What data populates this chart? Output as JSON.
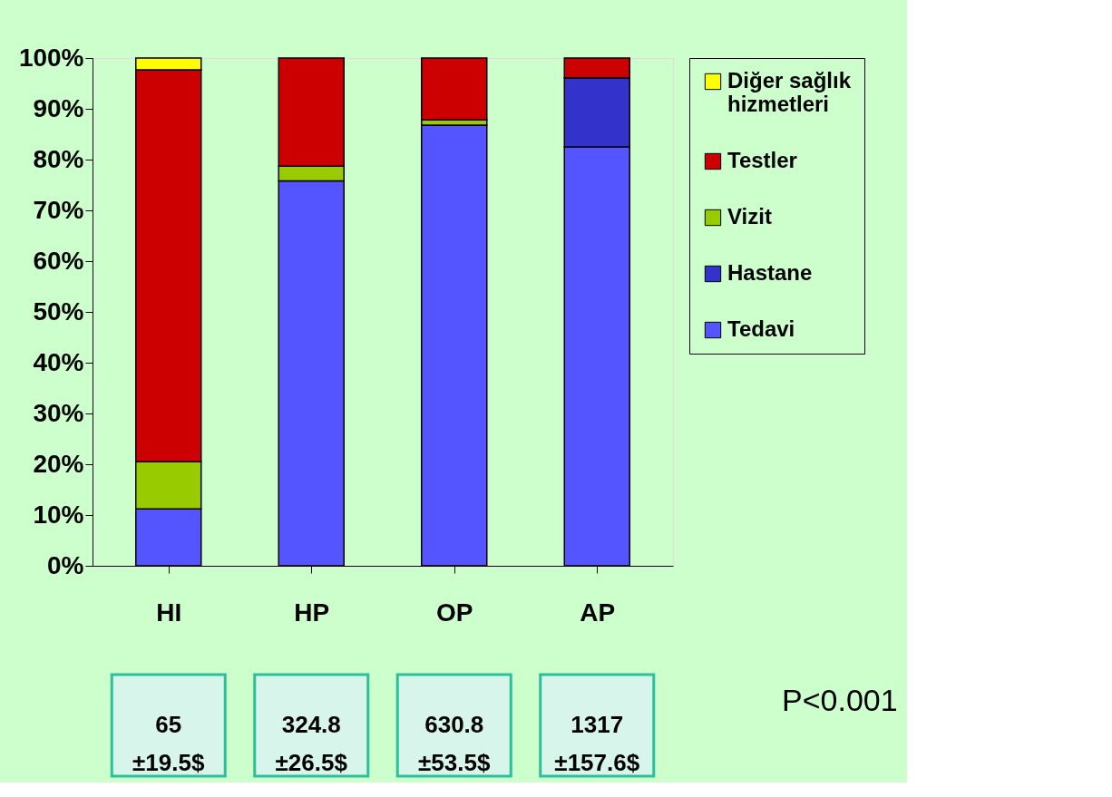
{
  "chart_data": {
    "type": "bar",
    "stacked": true,
    "categories": [
      "HI",
      "HP",
      "OP",
      "AP"
    ],
    "series": [
      {
        "name": "Tedavi",
        "color": "#5555ff",
        "values": [
          11.2,
          75.8,
          86.8,
          82.5
        ]
      },
      {
        "name": "Hastane",
        "color": "#3333cc",
        "values": [
          null,
          null,
          null,
          13.6
        ]
      },
      {
        "name": "Vizit",
        "color": "#99cc00",
        "values": [
          9.3,
          2.9,
          1.0,
          null
        ]
      },
      {
        "name": "Testler",
        "color": "#cc0000",
        "values": [
          77.2,
          21.3,
          12.2,
          3.9
        ]
      },
      {
        "name": "Diğer sağlık hizmetleri",
        "color": "#ffff00",
        "values": [
          2.3,
          null,
          null,
          null
        ]
      }
    ],
    "ylim": [
      0,
      100
    ],
    "yticks": [
      {
        "value": 0,
        "label": "0%"
      },
      {
        "value": 10,
        "label": "10%"
      },
      {
        "value": 20,
        "label": "20%"
      },
      {
        "value": 30,
        "label": "30%"
      },
      {
        "value": 40,
        "label": "40%"
      },
      {
        "value": 50,
        "label": "50%"
      },
      {
        "value": 60,
        "label": "60%"
      },
      {
        "value": 70,
        "label": "70%"
      },
      {
        "value": 80,
        "label": "80%"
      },
      {
        "value": 90,
        "label": "90%"
      },
      {
        "value": 100,
        "label": "100%"
      }
    ],
    "grid": false,
    "legend": "right",
    "annotations": [
      "65\n±19.5$",
      "324.8\n±26.5$",
      "630.8\n±53.5$",
      "1317\n±157.6$",
      "P<0.001"
    ]
  }
}
